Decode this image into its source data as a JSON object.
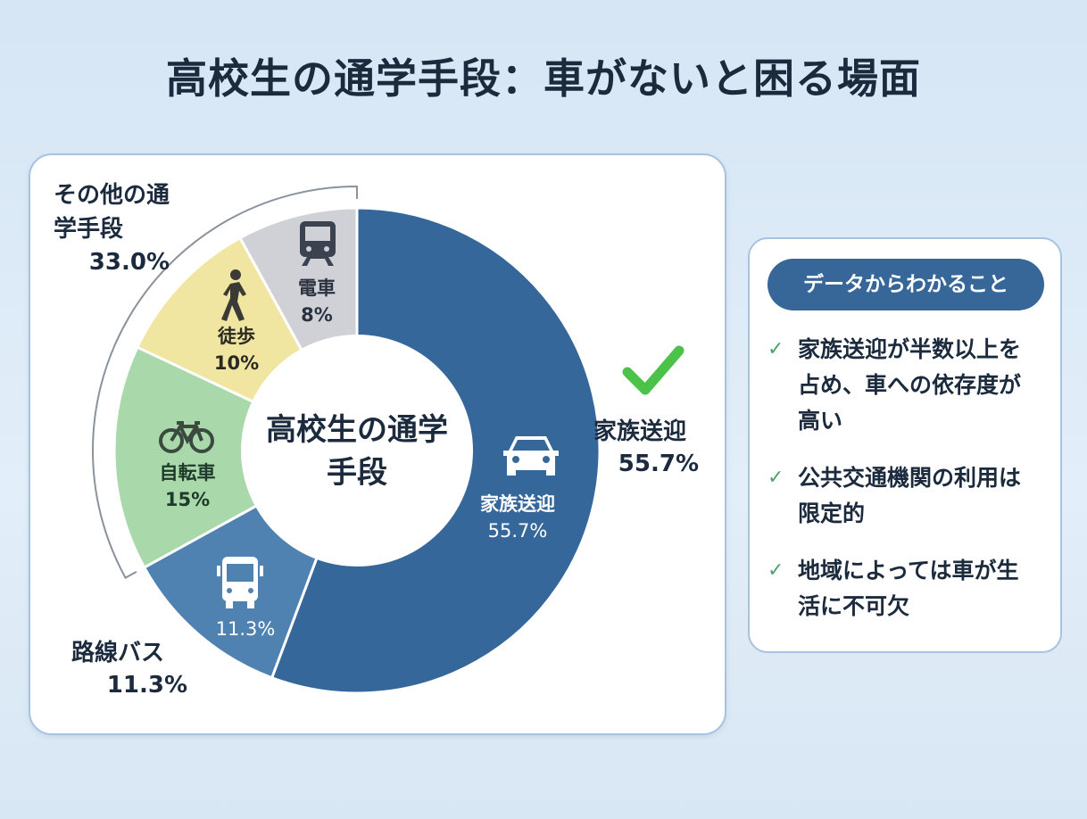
{
  "title": "高校生の通学手段：車がないと困る場面",
  "chart_data": {
    "type": "pie",
    "variant": "donut",
    "center_label": "高校生の通学手段",
    "slices": [
      {
        "label": "家族送迎",
        "value": 55.7,
        "display": "55.7%",
        "color": "#36679a",
        "icon": "car-icon"
      },
      {
        "label": "路線バス",
        "value": 11.3,
        "display": "11.3%",
        "color": "#4f81b1",
        "icon": "bus-icon"
      },
      {
        "label": "自転車",
        "value": 15,
        "display": "15%",
        "color": "#a9d9ab",
        "icon": "bicycle-icon"
      },
      {
        "label": "徒歩",
        "value": 10,
        "display": "10%",
        "color": "#f1e5a2",
        "icon": "walking-icon"
      },
      {
        "label": "電車",
        "value": 8,
        "display": "8%",
        "color": "#d0d1d7",
        "icon": "train-icon"
      }
    ],
    "group": {
      "label": "その他の通学手段",
      "value": 33.0,
      "display": "33.0%"
    },
    "callouts": {
      "family": {
        "label": "家族送迎",
        "display": "55.7%",
        "icon": "checkmark-icon"
      },
      "bus": {
        "label": "路線バス",
        "display": "11.3%"
      }
    }
  },
  "sidebar": {
    "heading": "データからわかること",
    "points": [
      "家族送迎が半数以上を占め、車への依存度が高い",
      "公共交通機関の利用は限定的",
      "地域によっては車が生活に不可欠"
    ],
    "check_color": "#4aa46a"
  }
}
